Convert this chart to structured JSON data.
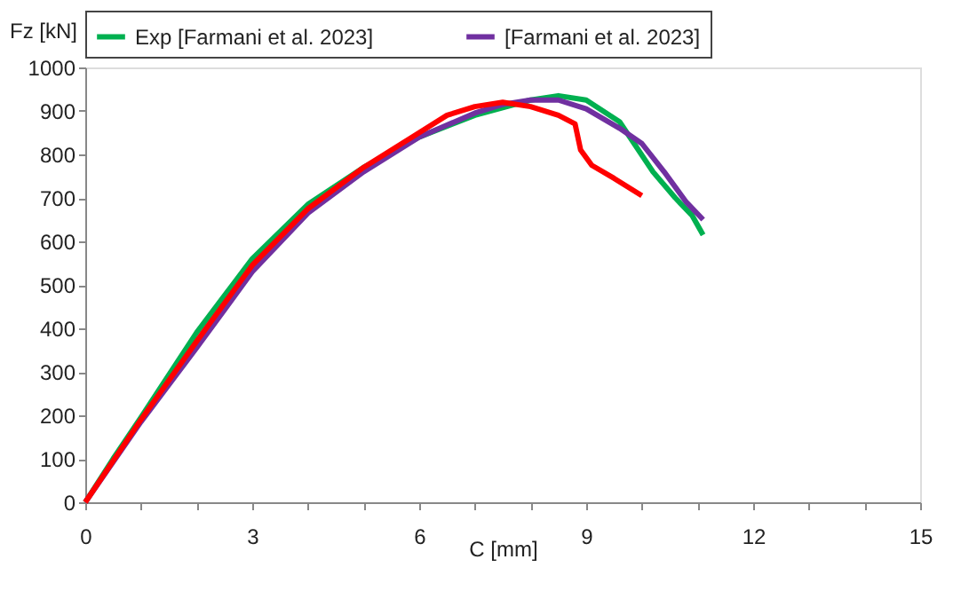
{
  "chart_data": {
    "type": "line",
    "xlabel": "C [mm]",
    "ylabel": "Fz [kN]",
    "xlim": [
      0,
      15
    ],
    "xticks": [
      0,
      {
        "value": 1,
        "label": null
      },
      {
        "value": 2,
        "label": null
      },
      3,
      {
        "value": 4,
        "label": null
      },
      {
        "value": 5,
        "label": null
      },
      6,
      {
        "value": 7,
        "label": null
      },
      {
        "value": 8,
        "label": null
      },
      9,
      {
        "value": 10,
        "label": null
      },
      {
        "value": 11,
        "label": null
      },
      12,
      {
        "value": 13,
        "label": null
      },
      {
        "value": 14,
        "label": null
      },
      15
    ],
    "ylim": [
      0,
      1000
    ],
    "yticks": [
      0,
      100,
      200,
      300,
      400,
      500,
      600,
      700,
      800,
      900,
      1000
    ],
    "grid": false,
    "legend": "top",
    "marker": "none",
    "line_style": "solid",
    "series": [
      {
        "name": "Exp [Farmani et al. 2023]",
        "color": "#00b050",
        "x": [
          0,
          0.5,
          1,
          2,
          3,
          4,
          5,
          6,
          7,
          8,
          8.5,
          9,
          9.6,
          10.2,
          10.6,
          10.9,
          11.1
        ],
        "values": [
          0,
          100,
          195,
          390,
          560,
          685,
          770,
          840,
          890,
          925,
          935,
          925,
          875,
          760,
          700,
          660,
          615
        ]
      },
      {
        "name": "[Farmani et al. 2023]",
        "color": "#7030a0",
        "x": [
          0,
          1,
          2,
          3,
          4,
          5,
          6,
          7,
          7.5,
          8,
          8.5,
          9,
          9.6,
          10,
          10.4,
          10.8,
          11.1
        ],
        "values": [
          0,
          185,
          355,
          530,
          665,
          760,
          840,
          895,
          915,
          925,
          925,
          905,
          860,
          825,
          760,
          690,
          650
        ]
      },
      {
        "color": "#ff0000",
        "x": [
          0,
          1,
          2,
          3,
          4,
          5,
          6,
          6.5,
          7,
          7.5,
          8,
          8.5,
          8.8,
          8.9,
          9.1,
          9.5,
          10
        ],
        "values": [
          0,
          190,
          370,
          545,
          675,
          770,
          850,
          890,
          910,
          920,
          910,
          890,
          870,
          810,
          775,
          745,
          705
        ]
      }
    ]
  }
}
